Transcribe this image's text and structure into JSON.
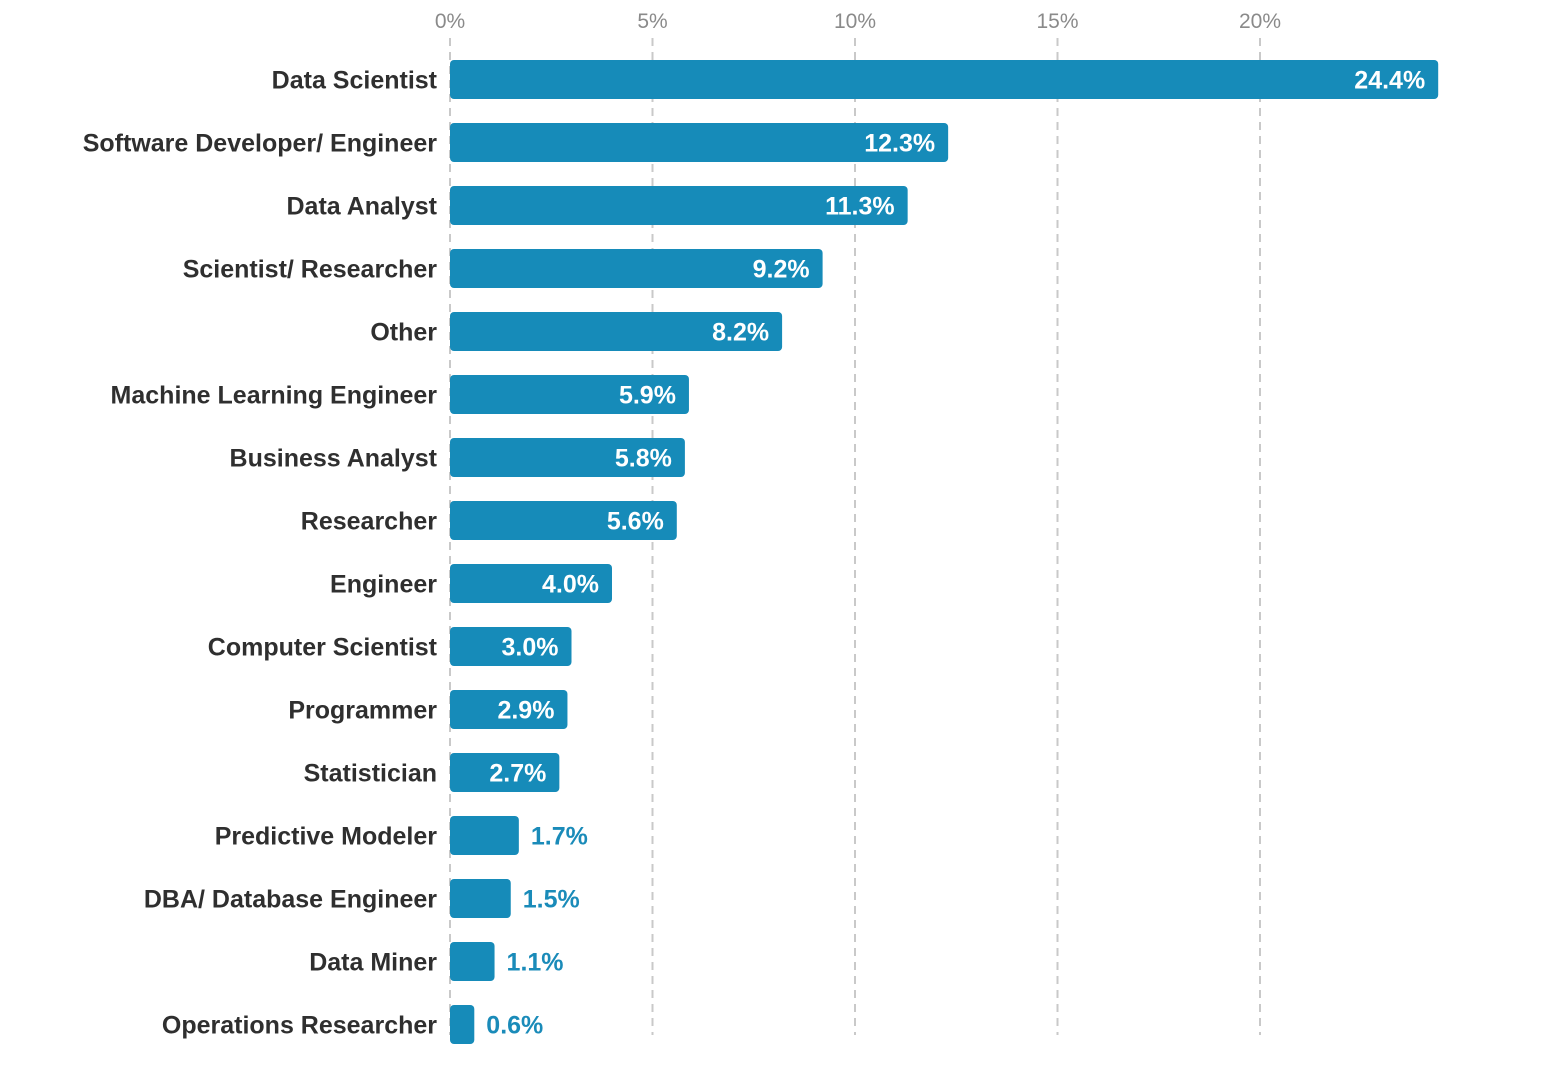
{
  "chart_data": {
    "type": "bar",
    "orientation": "horizontal",
    "categories": [
      "Data Scientist",
      "Software Developer/ Engineer",
      "Data Analyst",
      "Scientist/ Researcher",
      "Other",
      "Machine Learning Engineer",
      "Business Analyst",
      "Researcher",
      "Engineer",
      "Computer Scientist",
      "Programmer",
      "Statistician",
      "Predictive Modeler",
      "DBA/ Database Engineer",
      "Data Miner",
      "Operations Researcher"
    ],
    "values": [
      24.4,
      12.3,
      11.3,
      9.2,
      8.2,
      5.9,
      5.8,
      5.6,
      4.0,
      3.0,
      2.9,
      2.7,
      1.7,
      1.5,
      1.1,
      0.6
    ],
    "value_labels": [
      "24.4%",
      "12.3%",
      "11.3%",
      "9.2%",
      "8.2%",
      "5.9%",
      "5.8%",
      "5.6%",
      "4.0%",
      "3.0%",
      "2.9%",
      "2.7%",
      "1.7%",
      "1.5%",
      "1.1%",
      "0.6%"
    ],
    "x_ticks": [
      0,
      5,
      10,
      15,
      20
    ],
    "x_tick_labels": [
      "0%",
      "5%",
      "10%",
      "15%",
      "20%"
    ],
    "xlim": [
      0,
      25
    ],
    "axis_position": "top",
    "grid": true,
    "legend": "none",
    "title": "",
    "xlabel": "",
    "ylabel": "",
    "colors": {
      "bar": "#168bb9",
      "label_inside": "#ffffff",
      "label_outside": "#1a8bb9",
      "category_text": "#2f2f2f",
      "tick_text": "#8a8a8a",
      "grid": "#c9c9c9"
    }
  }
}
